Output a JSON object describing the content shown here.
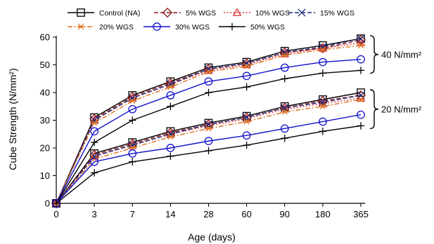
{
  "chart_data": {
    "type": "line",
    "xlabel": "Age (days)",
    "ylabel": "Cube Strength (N/mm²)",
    "x_categories": [
      "0",
      "3",
      "7",
      "14",
      "28",
      "60",
      "90",
      "180",
      "365"
    ],
    "ylim": [
      0,
      60
    ],
    "yticks": [
      0,
      10,
      20,
      30,
      40,
      50,
      60
    ],
    "grid": false,
    "legend_position": "top",
    "groups": [
      {
        "label": "40 N/mm²",
        "series": [
          {
            "name": "Control (NA)",
            "marker": "square",
            "color": "#000000",
            "dash": "solid",
            "values": [
              0,
              31,
              39,
              44,
              49,
              51,
              55,
              57,
              59.5
            ]
          },
          {
            "name": "5% WGS",
            "marker": "diamond",
            "color": "#8B1A1A",
            "dash": "dash",
            "values": [
              0,
              30.5,
              38.5,
              43.5,
              48.5,
              50.5,
              54.5,
              56,
              59
            ]
          },
          {
            "name": "10% WGS",
            "marker": "triangle",
            "color": "#E03030",
            "dash": "dot",
            "values": [
              0,
              30,
              38,
              43,
              48,
              50,
              54,
              56,
              58
            ]
          },
          {
            "name": "15% WGS",
            "marker": "x",
            "color": "#1A2A7A",
            "dash": "dash",
            "values": [
              0,
              30,
              38,
              43,
              48.5,
              50.5,
              54.5,
              56.5,
              59.5
            ]
          },
          {
            "name": "20% WGS",
            "marker": "asterisk",
            "color": "#E07020",
            "dash": "dashdot",
            "values": [
              0,
              29,
              37,
              42,
              47.5,
              49.5,
              53.5,
              55.5,
              57
            ]
          },
          {
            "name": "30% WGS",
            "marker": "circle",
            "color": "#1010CC",
            "dash": "solid",
            "values": [
              0,
              26,
              34,
              39,
              44,
              46,
              49,
              51,
              52
            ]
          },
          {
            "name": "50% WGS",
            "marker": "plus",
            "color": "#000000",
            "dash": "solid",
            "values": [
              0,
              22,
              30,
              35,
              40,
              42,
              45,
              47,
              48
            ]
          }
        ]
      },
      {
        "label": "20 N/mm²",
        "series": [
          {
            "name": "Control (NA)",
            "marker": "square",
            "color": "#000000",
            "dash": "solid",
            "values": [
              0,
              18,
              22,
              26,
              29,
              31.5,
              35,
              37.5,
              40
            ]
          },
          {
            "name": "5% WGS",
            "marker": "diamond",
            "color": "#8B1A1A",
            "dash": "dash",
            "values": [
              0,
              17.5,
              21.5,
              25.5,
              28.5,
              31,
              34.5,
              37,
              39
            ]
          },
          {
            "name": "10% WGS",
            "marker": "triangle",
            "color": "#E03030",
            "dash": "dot",
            "values": [
              0,
              17,
              21,
              25,
              28,
              30.5,
              34,
              36,
              38
            ]
          },
          {
            "name": "15% WGS",
            "marker": "x",
            "color": "#1A2A7A",
            "dash": "dash",
            "values": [
              0,
              17,
              21,
              25,
              28.5,
              31,
              34.5,
              36.5,
              39
            ]
          },
          {
            "name": "20% WGS",
            "marker": "asterisk",
            "color": "#E07020",
            "dash": "dashdot",
            "values": [
              0,
              16,
              20,
              24,
              27,
              29.5,
              33,
              35,
              37.5
            ]
          },
          {
            "name": "30% WGS",
            "marker": "circle",
            "color": "#1010CC",
            "dash": "solid",
            "values": [
              0,
              15,
              18,
              20,
              22.5,
              24.5,
              27,
              29.5,
              32
            ]
          },
          {
            "name": "50% WGS",
            "marker": "plus",
            "color": "#000000",
            "dash": "solid",
            "values": [
              0,
              11,
              15,
              17,
              19,
              21,
              23.5,
              26,
              28
            ]
          }
        ]
      }
    ]
  }
}
